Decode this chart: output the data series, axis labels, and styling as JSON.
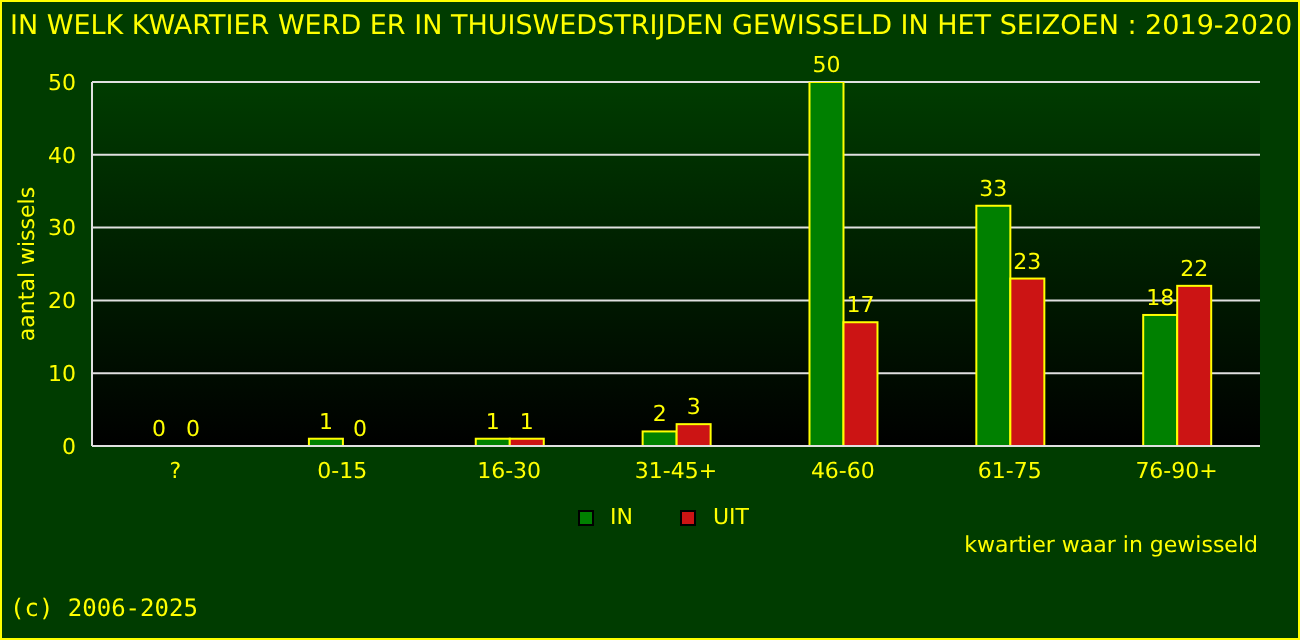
{
  "chart_data": {
    "type": "bar",
    "title": "IN WELK KWARTIER WERD ER IN THUISWEDSTRIJDEN GEWISSELD IN HET SEIZOEN : 2019-2020",
    "xlabel": "kwartier waar in gewisseld",
    "ylabel": "aantal wissels",
    "categories": [
      "?",
      "0-15",
      "16-30",
      "31-45+",
      "46-60",
      "61-75",
      "76-90+"
    ],
    "series": [
      {
        "name": "IN",
        "color": "#008000",
        "values": [
          0,
          1,
          1,
          2,
          50,
          33,
          18
        ]
      },
      {
        "name": "UIT",
        "color": "#cc1414",
        "values": [
          0,
          0,
          1,
          3,
          17,
          23,
          22
        ]
      }
    ],
    "ylim": [
      0,
      50
    ],
    "yticks": [
      0,
      10,
      20,
      30,
      40,
      50
    ],
    "grid": "y",
    "legend": "bottom",
    "data_labels": true,
    "annotations": [
      "(c) 2006-2025"
    ]
  }
}
